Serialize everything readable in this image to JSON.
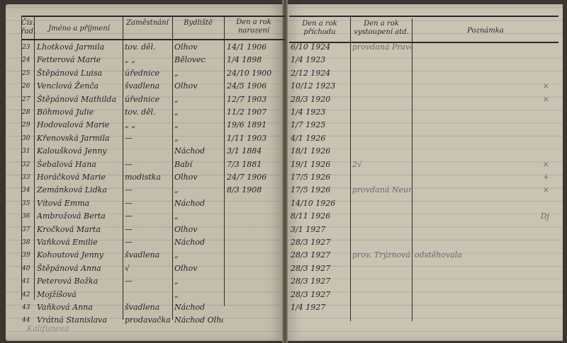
{
  "headers": {
    "number": "Čís. řad.",
    "name": "Jméno a příjmení",
    "occupation": "Zaměstnání",
    "residence": "Bydliště",
    "birth": "Den a rok narození",
    "arrival": "Den a rok příchodu",
    "departure": "Den a rok vystoupení atd.",
    "notes": "Poznámka"
  },
  "rows": [
    {
      "no": "23",
      "name": "Lhotková Jarmila",
      "occupation": "tov. děl.",
      "residence": "Olhov",
      "birth": "14/1 1906",
      "arrival": "6/10 1924",
      "departure": "provdaná Pravcová",
      "note": ""
    },
    {
      "no": "24",
      "name": "Fetterová Marie",
      "occupation": "„ „",
      "residence": "Bělovec",
      "birth": "1/4 1898",
      "arrival": "1/4 1923",
      "departure": "",
      "note": ""
    },
    {
      "no": "25",
      "name": "Štěpánová Luisa",
      "occupation": "úřednice",
      "residence": "„",
      "birth": "24/10 1900",
      "arrival": "2/12 1924",
      "departure": "",
      "note": ""
    },
    {
      "no": "26",
      "name": "Venclová Ženča",
      "occupation": "švadlena",
      "residence": "Olhov",
      "birth": "24/5 1906",
      "arrival": "10/12 1923",
      "departure": "",
      "note": "×"
    },
    {
      "no": "27",
      "name": "Štěpánová Mathilda",
      "occupation": "úřednice",
      "residence": "„",
      "birth": "12/7 1903",
      "arrival": "28/3 1920",
      "departure": "",
      "note": "×"
    },
    {
      "no": "28",
      "name": "Böhmová Julie",
      "occupation": "tov. děl.",
      "residence": "„",
      "birth": "11/2 1907",
      "arrival": "1/4 1923",
      "departure": "",
      "note": ""
    },
    {
      "no": "29",
      "name": "Hodovalová Marie",
      "occupation": "„ „",
      "residence": "„",
      "birth": "19/6 1891",
      "arrival": "1/7 1925",
      "departure": "",
      "note": ""
    },
    {
      "no": "30",
      "name": "Křenovská Jarmila",
      "occupation": "—",
      "residence": "„",
      "birth": "1/11 1903",
      "arrival": "4/1 1926",
      "departure": "",
      "note": ""
    },
    {
      "no": "31",
      "name": "Kaloušková Jenny",
      "occupation": "",
      "residence": "Náchod",
      "birth": "3/1 1884",
      "arrival": "18/1 1926",
      "departure": "",
      "note": ""
    },
    {
      "no": "32",
      "name": "Šebalová Hana",
      "occupation": "—",
      "residence": "Babí",
      "birth": "7/3 1881",
      "arrival": "19/1 1926",
      "departure": "2√",
      "note": "×"
    },
    {
      "no": "33",
      "name": "Horáčková Marie",
      "occupation": "modistka",
      "residence": "Olhov",
      "birth": "24/7 1906",
      "arrival": "17/5 1926",
      "departure": "",
      "note": "+"
    },
    {
      "no": "34",
      "name": "Zemánková Lidka",
      "occupation": "—",
      "residence": "„",
      "birth": "8/3 1908",
      "arrival": "17/5 1926",
      "departure": "provdaná Neumannová",
      "note": "×"
    },
    {
      "no": "35",
      "name": "Vítová Emma",
      "occupation": "—",
      "residence": "Náchod",
      "birth": "",
      "arrival": "14/10 1926",
      "departure": "",
      "note": ""
    },
    {
      "no": "36",
      "name": "Ambrožová Berta",
      "occupation": "—",
      "residence": "„",
      "birth": "",
      "arrival": "8/11 1926",
      "departure": "",
      "note": "Dj"
    },
    {
      "no": "37",
      "name": "Kročková Marta",
      "occupation": "—",
      "residence": "Olhov",
      "birth": "",
      "arrival": "3/1 1927",
      "departure": "",
      "note": ""
    },
    {
      "no": "38",
      "name": "Vaňková Emilie",
      "occupation": "—",
      "residence": "Náchod",
      "birth": "",
      "arrival": "28/3 1927",
      "departure": "",
      "note": ""
    },
    {
      "no": "39",
      "name": "Kohoutová Jenny",
      "occupation": "švadlena",
      "residence": "„",
      "birth": "",
      "arrival": "28/3 1927",
      "departure": "prov. Trýznová",
      "note": "odstěhovala"
    },
    {
      "no": "40",
      "name": "Štěpánová Anna",
      "occupation": "√",
      "residence": "Olhov",
      "birth": "",
      "arrival": "28/3 1927",
      "departure": "",
      "note": ""
    },
    {
      "no": "41",
      "name": "Peterová Božka",
      "occupation": "—",
      "residence": "„",
      "birth": "",
      "arrival": "28/3 1927",
      "departure": "",
      "note": ""
    },
    {
      "no": "42",
      "name": "Mojžíšová",
      "occupation": "",
      "residence": "„",
      "birth": "",
      "arrival": "28/3 1927",
      "departure": "",
      "note": ""
    },
    {
      "no": "43",
      "name": "Vaňková Anna",
      "occupation": "švadlena",
      "residence": "Náchod",
      "birth": "",
      "arrival": "1/4 1927",
      "departure": "",
      "note": ""
    },
    {
      "no": "44",
      "name": "Vrátná Stanislava",
      "occupation": "prodavačka",
      "residence": "Náchod Olhov",
      "birth": "",
      "arrival": "",
      "departure": "",
      "note": ""
    }
  ],
  "pencil_note": "Kalifunová",
  "colors": {
    "paper": "#c4bdab",
    "ink": "#2a2a30",
    "background": "#3a3530"
  }
}
